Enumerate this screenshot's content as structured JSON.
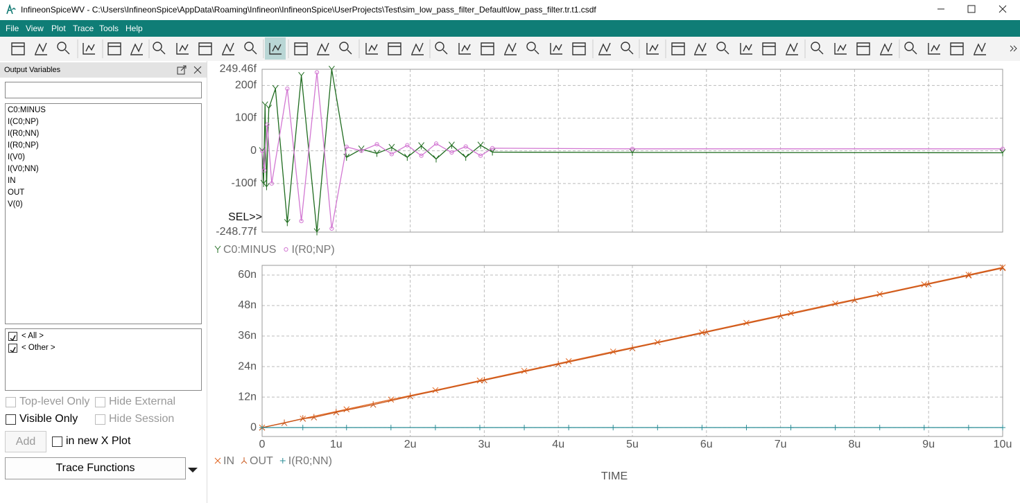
{
  "window": {
    "title": "InfineonSpiceWV - C:\\Users\\InfineonSpice\\AppData\\Roaming\\Infineon\\InfineonSpice\\UserProjects\\Test\\sim_low_pass_filter_Default\\low_pass_filter.tr.t1.csdf"
  },
  "menu": [
    "File",
    "View",
    "Plot",
    "Trace",
    "Tools",
    "Help"
  ],
  "output_variables": {
    "title": "Output Variables",
    "variables": [
      "C0:MINUS",
      "I(C0;NP)",
      "I(R0;NN)",
      "I(R0;NP)",
      "I(V0)",
      "I(V0;NN)",
      "IN",
      "OUT",
      "V(0)"
    ],
    "filters": [
      {
        "label": "< All >",
        "checked": true
      },
      {
        "label": "< Other >",
        "checked": true
      }
    ],
    "options": [
      {
        "label": "Top-level Only",
        "checked": false,
        "enabled": false
      },
      {
        "label": "Hide External",
        "checked": false,
        "enabled": false
      },
      {
        "label": "Visible Only",
        "checked": false,
        "enabled": true
      },
      {
        "label": "Hide Session",
        "checked": false,
        "enabled": false
      }
    ],
    "add_button": {
      "label": "Add",
      "enabled": false
    },
    "new_x_plot": {
      "label": "in new X Plot",
      "checked": false,
      "enabled": true
    },
    "trace_functions": "Trace Functions"
  },
  "chart_data": [
    {
      "type": "line",
      "sel_label": "SEL>>",
      "grid": true,
      "xtick_labels": false,
      "xlim": [
        0,
        10
      ],
      "xticks": [
        0,
        1,
        2,
        3,
        4,
        5,
        6,
        7,
        8,
        9,
        10
      ],
      "ylim": [
        -248.77,
        249.46
      ],
      "yticks": [
        {
          "value": 249.46,
          "label": "249.46f"
        },
        {
          "value": 200,
          "label": "200f"
        },
        {
          "value": 100,
          "label": "100f"
        },
        0,
        {
          "value": -100,
          "label": "-100f"
        },
        {
          "value": -248.77,
          "label": "-248.77f"
        }
      ],
      "series": [
        {
          "name": "C0:MINUS",
          "color": "#1e6b1e",
          "marker": "y",
          "x": [
            0,
            0.02,
            0.04,
            0.06,
            0.09,
            0.18,
            0.34,
            0.53,
            0.74,
            0.94,
            1.14,
            1.34,
            1.55,
            1.75,
            1.96,
            2.15,
            2.35,
            2.56,
            2.75,
            2.95,
            3.11,
            5,
            10
          ],
          "values": [
            0,
            -100,
            140,
            -110,
            130,
            190,
            -220,
            230,
            -248,
            249,
            -20,
            5,
            -8,
            10,
            -20,
            15,
            -25,
            17,
            -20,
            17,
            -4,
            -5,
            -6
          ]
        },
        {
          "name": "I(R0;NP)",
          "color": "#d277d2",
          "marker": "o",
          "x": [
            0,
            0.03,
            0.07,
            0.13,
            0.34,
            0.53,
            0.74,
            0.94,
            1.14,
            1.34,
            1.55,
            1.75,
            1.96,
            2.15,
            2.35,
            2.56,
            2.75,
            2.95,
            3.11,
            5,
            10
          ],
          "values": [
            0,
            -60,
            80,
            -100,
            190,
            -215,
            240,
            -238,
            12,
            0,
            20,
            -10,
            17,
            -15,
            22,
            -5,
            13,
            -15,
            8,
            6,
            6
          ]
        }
      ]
    },
    {
      "type": "line",
      "grid": true,
      "xtick_labels": true,
      "xlabel": "TIME",
      "xlim": [
        0,
        10
      ],
      "xticks": [
        0,
        {
          "value": 1,
          "label": "1u"
        },
        {
          "value": 2,
          "label": "2u"
        },
        {
          "value": 3,
          "label": "3u"
        },
        {
          "value": 4,
          "label": "4u"
        },
        {
          "value": 5,
          "label": "5u"
        },
        {
          "value": 6,
          "label": "6u"
        },
        {
          "value": 7,
          "label": "7u"
        },
        {
          "value": 8,
          "label": "8u"
        },
        {
          "value": 9,
          "label": "9u"
        },
        {
          "value": 10,
          "label": "10u"
        }
      ],
      "ylim": [
        -3.5,
        63.8
      ],
      "yticks": [
        0,
        {
          "value": 12,
          "label": "12n"
        },
        {
          "value": 24,
          "label": "24n"
        },
        {
          "value": 36,
          "label": "36n"
        },
        {
          "value": 48,
          "label": "48n"
        },
        {
          "value": 60,
          "label": "60n"
        }
      ],
      "series": [
        {
          "name": "IN",
          "color": "#e0641e",
          "marker": "x",
          "x": [
            0,
            0.55,
            1.14,
            1.74,
            2.34,
            2.94,
            3.54,
            4.14,
            4.74,
            5.34,
            5.94,
            6.54,
            7.14,
            7.74,
            8.34,
            8.94,
            9.54,
            10
          ],
          "values": [
            0,
            3.5,
            7.2,
            11,
            14.7,
            18.5,
            22.3,
            26.1,
            29.9,
            33.6,
            37.4,
            41.2,
            45,
            48.8,
            52.5,
            56.3,
            60.1,
            63
          ]
        },
        {
          "name": "OUT",
          "color": "#c8561a",
          "marker": "lambda",
          "x": [
            0,
            0.3,
            0.55,
            0.7,
            1,
            1.5,
            2,
            3,
            4,
            5,
            6,
            7,
            8,
            9,
            9.54,
            10
          ],
          "values": [
            0,
            1.8,
            3.5,
            4,
            6,
            9,
            12.3,
            18.6,
            24.9,
            31.2,
            37.5,
            43.8,
            50.1,
            56.4,
            59.8,
            62.7
          ]
        },
        {
          "name": "I(R0;NN)",
          "color": "#2a8c96",
          "marker": "+",
          "x": [
            0,
            0.55,
            1.14,
            1.74,
            2.34,
            2.94,
            3.54,
            4.14,
            4.74,
            5.34,
            5.94,
            6.54,
            7.14,
            7.74,
            8.34,
            8.94,
            9.54,
            10
          ],
          "values": [
            0,
            0,
            0,
            0,
            0,
            0,
            0,
            0,
            0,
            0,
            0,
            0,
            0,
            0,
            0,
            0,
            0,
            0
          ]
        }
      ]
    }
  ]
}
